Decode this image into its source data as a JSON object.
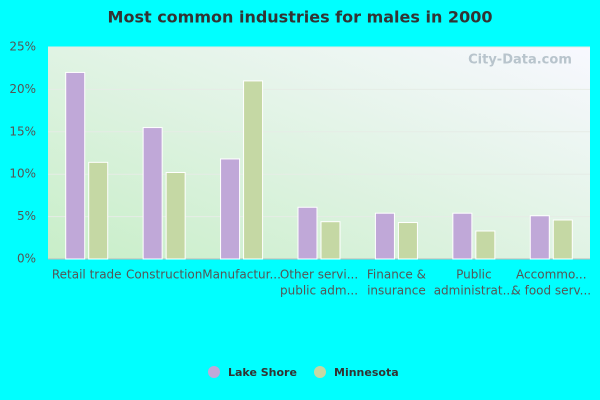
{
  "chart_data": {
    "type": "bar",
    "title": "Most common industries for males in 2000",
    "watermark": "City-Data.com",
    "categories": [
      [
        "Retail trade"
      ],
      [
        "Construction"
      ],
      [
        "Manufactur..."
      ],
      [
        "Other servi...",
        "public adm..."
      ],
      [
        "Finance &",
        "insurance"
      ],
      [
        "Public",
        "administrat..."
      ],
      [
        "Accommo...",
        "& food serv..."
      ]
    ],
    "series": [
      {
        "name": "Lake Shore",
        "color": "#c0a8d8",
        "values": [
          22,
          15.5,
          11.8,
          6.1,
          5.4,
          5.4,
          5.1
        ]
      },
      {
        "name": "Minnesota",
        "color": "#c5d8a4",
        "values": [
          11.4,
          10.2,
          21.0,
          4.4,
          4.3,
          3.3,
          4.6
        ]
      }
    ],
    "ylim": [
      0,
      25
    ],
    "yticks": [
      {
        "value": 0,
        "label": "0%"
      },
      {
        "value": 5,
        "label": "5%"
      },
      {
        "value": 10,
        "label": "10%"
      },
      {
        "value": 15,
        "label": "15%"
      },
      {
        "value": 20,
        "label": "20%"
      },
      {
        "value": 25,
        "label": "25%"
      }
    ],
    "grid": true
  }
}
